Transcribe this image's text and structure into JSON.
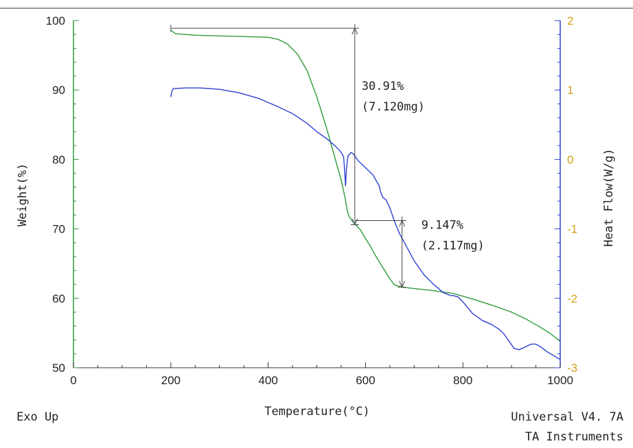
{
  "chart_data": {
    "type": "line",
    "title": "",
    "xlabel": "Temperature(°C)",
    "ylabel": "Weight(%)",
    "y2label": "Heat Flow(W/g)",
    "xlim": [
      0,
      1000
    ],
    "ylim": [
      50,
      100
    ],
    "y2lim": [
      -3,
      2
    ],
    "x_ticks": [
      "0",
      "200",
      "400",
      "600",
      "800",
      "1000"
    ],
    "y_ticks": [
      "50",
      "60",
      "70",
      "80",
      "90",
      "100"
    ],
    "y2_ticks": [
      "-3",
      "-2",
      "-1",
      "0",
      "1",
      "2"
    ],
    "grid": false,
    "series": [
      {
        "axis": "left",
        "color": "#2e9a3a",
        "points": [
          [
            200,
            98.6
          ],
          [
            210,
            98.1
          ],
          [
            250,
            97.9
          ],
          [
            300,
            97.8
          ],
          [
            350,
            97.7
          ],
          [
            400,
            97.6
          ],
          [
            420,
            97.3
          ],
          [
            440,
            96.6
          ],
          [
            460,
            95.2
          ],
          [
            480,
            92.8
          ],
          [
            500,
            89.0
          ],
          [
            520,
            84.5
          ],
          [
            540,
            79.5
          ],
          [
            550,
            77.0
          ],
          [
            558,
            74.5
          ],
          [
            562,
            72.8
          ],
          [
            566,
            71.8
          ],
          [
            572,
            71.2
          ],
          [
            580,
            70.6
          ],
          [
            590,
            69.8
          ],
          [
            600,
            68.6
          ],
          [
            610,
            67.5
          ],
          [
            620,
            66.2
          ],
          [
            635,
            64.5
          ],
          [
            650,
            62.8
          ],
          [
            660,
            61.9
          ],
          [
            675,
            61.6
          ],
          [
            700,
            61.4
          ],
          [
            740,
            61.1
          ],
          [
            780,
            60.7
          ],
          [
            820,
            59.9
          ],
          [
            860,
            59.0
          ],
          [
            900,
            58.0
          ],
          [
            930,
            57.0
          ],
          [
            960,
            55.8
          ],
          [
            980,
            54.9
          ],
          [
            1000,
            53.8
          ]
        ]
      },
      {
        "axis": "right",
        "color": "#2b3fd0",
        "points": [
          [
            200,
            0.9
          ],
          [
            202,
            0.98
          ],
          [
            205,
            1.02
          ],
          [
            230,
            1.03
          ],
          [
            260,
            1.03
          ],
          [
            300,
            1.01
          ],
          [
            340,
            0.96
          ],
          [
            380,
            0.88
          ],
          [
            420,
            0.76
          ],
          [
            450,
            0.66
          ],
          [
            480,
            0.52
          ],
          [
            500,
            0.4
          ],
          [
            520,
            0.3
          ],
          [
            540,
            0.18
          ],
          [
            550,
            0.1
          ],
          [
            555,
            0.04
          ],
          [
            557,
            -0.15
          ],
          [
            559,
            -0.38
          ],
          [
            561,
            -0.12
          ],
          [
            564,
            0.05
          ],
          [
            567,
            0.07
          ],
          [
            570,
            0.1
          ],
          [
            575,
            0.08
          ],
          [
            585,
            -0.02
          ],
          [
            600,
            -0.12
          ],
          [
            615,
            -0.22
          ],
          [
            628,
            -0.38
          ],
          [
            631,
            -0.47
          ],
          [
            636,
            -0.55
          ],
          [
            642,
            -0.58
          ],
          [
            650,
            -0.7
          ],
          [
            660,
            -0.9
          ],
          [
            670,
            -1.07
          ],
          [
            680,
            -1.2
          ],
          [
            700,
            -1.46
          ],
          [
            720,
            -1.66
          ],
          [
            740,
            -1.8
          ],
          [
            760,
            -1.92
          ],
          [
            775,
            -1.96
          ],
          [
            780,
            -1.96
          ],
          [
            790,
            -1.98
          ],
          [
            800,
            -2.05
          ],
          [
            820,
            -2.22
          ],
          [
            840,
            -2.32
          ],
          [
            860,
            -2.38
          ],
          [
            875,
            -2.45
          ],
          [
            885,
            -2.52
          ],
          [
            895,
            -2.62
          ],
          [
            905,
            -2.72
          ],
          [
            915,
            -2.74
          ],
          [
            925,
            -2.71
          ],
          [
            940,
            -2.66
          ],
          [
            950,
            -2.66
          ],
          [
            960,
            -2.7
          ],
          [
            975,
            -2.78
          ],
          [
            990,
            -2.84
          ],
          [
            1000,
            -2.88
          ]
        ]
      }
    ],
    "annotations": [
      {
        "text1": "30.91%",
        "text2": "(7.120mg)",
        "x": 578,
        "from": 98.9,
        "to": 70.6,
        "ref_from": 200
      },
      {
        "text1": "9.147%",
        "text2": "(2.117mg)",
        "x": 675,
        "from": 71.2,
        "to": 61.6,
        "ref_from": 578
      }
    ]
  },
  "footer": {
    "left": "Exo Up",
    "right1": "Universal V4. 7A",
    "right2": "TA Instruments"
  },
  "colors": {
    "left_axis": "#2e9a3a",
    "right_axis": "#2b3fd0",
    "right_tick_text": "#d4a017"
  }
}
